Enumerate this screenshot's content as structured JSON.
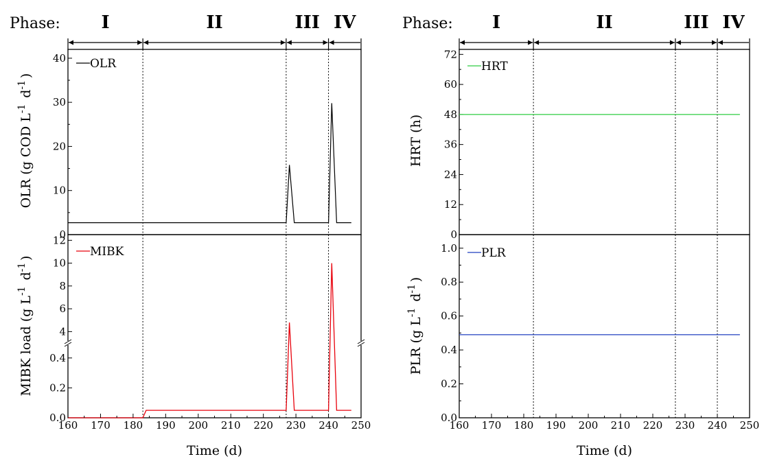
{
  "phase_label": "Phase:",
  "phases": [
    {
      "label": "I",
      "start": 160,
      "end": 183
    },
    {
      "label": "II",
      "start": 183,
      "end": 227
    },
    {
      "label": "III",
      "start": 227,
      "end": 240
    },
    {
      "label": "IV",
      "start": 240,
      "end": 250
    }
  ],
  "chart_data": [
    {
      "type": "line",
      "ylabel": "OLR (g COD L-1 d-1)",
      "xlim": [
        160,
        250
      ],
      "ylim": [
        0,
        42
      ],
      "yticks": [
        0,
        10,
        20,
        30,
        40
      ],
      "series": [
        {
          "name": "OLR",
          "color": "#000000",
          "x": [
            160,
            227,
            228,
            229.5,
            240,
            241,
            242.5,
            247
          ],
          "y": [
            2.7,
            2.7,
            15.8,
            2.7,
            2.7,
            29.8,
            2.7,
            2.7
          ]
        }
      ]
    },
    {
      "type": "line",
      "ylabel": "MIBK load (g L-1 d-1)",
      "xlabel": "Time (d)",
      "xlim": [
        160,
        250
      ],
      "xticks": [
        160,
        170,
        180,
        190,
        200,
        210,
        220,
        230,
        240,
        250
      ],
      "broken_axis": {
        "lower": [
          0,
          0.5
        ],
        "upper": [
          3,
          12.5
        ]
      },
      "yticks_lower": [
        0.0,
        0.2,
        0.4
      ],
      "yticks_upper": [
        4,
        6,
        8,
        10,
        12
      ],
      "series": [
        {
          "name": "MIBK",
          "color": "#e8000b",
          "x": [
            160,
            183,
            184,
            227,
            228,
            229.5,
            240,
            241,
            242.5,
            247
          ],
          "y": [
            0,
            0,
            0.05,
            0.05,
            4.8,
            0.05,
            0.05,
            10,
            0.05,
            0.05
          ]
        }
      ]
    },
    {
      "type": "line",
      "ylabel": "HRT (h)",
      "xlim": [
        160,
        250
      ],
      "ylim": [
        0,
        74
      ],
      "yticks": [
        0,
        12,
        24,
        36,
        48,
        60,
        72
      ],
      "series": [
        {
          "name": "HRT",
          "color": "#2ecc40",
          "x": [
            160,
            247
          ],
          "y": [
            48,
            48
          ]
        }
      ]
    },
    {
      "type": "line",
      "ylabel": "PLR (g L-1 d-1)",
      "xlabel": "Time (d)",
      "xlim": [
        160,
        250
      ],
      "ylim": [
        0,
        1.08
      ],
      "xticks": [
        160,
        170,
        180,
        190,
        200,
        210,
        220,
        230,
        240,
        250
      ],
      "yticks": [
        0.0,
        0.2,
        0.4,
        0.6,
        0.8,
        1.0
      ],
      "series": [
        {
          "name": "PLR",
          "color": "#1f3fbf",
          "x": [
            160,
            247
          ],
          "y": [
            0.49,
            0.49
          ]
        }
      ]
    }
  ]
}
